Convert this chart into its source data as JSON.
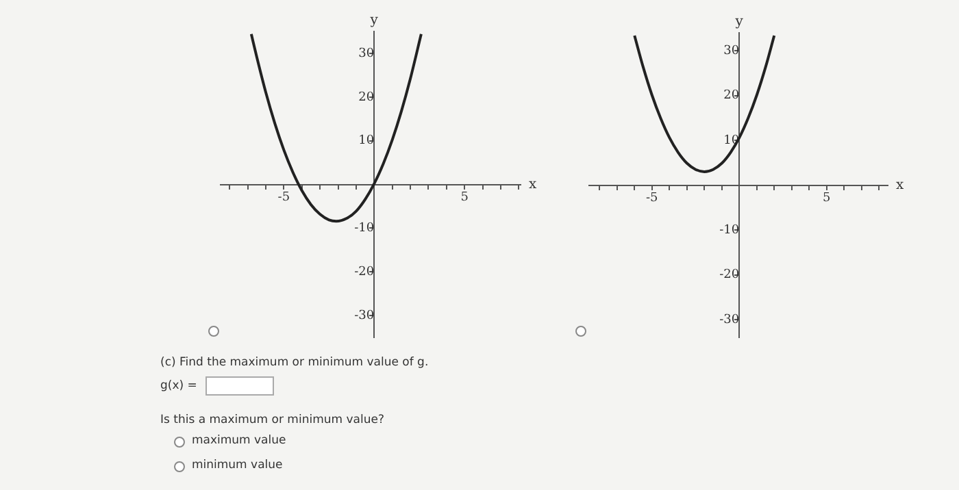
{
  "chart_data": [
    {
      "type": "line",
      "xlabel": "x",
      "ylabel": "y",
      "marker": "none",
      "line_style": "solid",
      "grid": false,
      "legend": false,
      "xlim": [
        -8.5,
        8.1
      ],
      "ylim": [
        -35,
        35
      ],
      "xticks": [
        {
          "value": -8,
          "label": null
        },
        {
          "value": -7,
          "label": null
        },
        {
          "value": -6,
          "label": null
        },
        {
          "value": -5,
          "label": "-5"
        },
        {
          "value": -4,
          "label": null
        },
        {
          "value": -3,
          "label": null
        },
        {
          "value": -2,
          "label": null
        },
        {
          "value": -1,
          "label": null
        },
        {
          "value": 1,
          "label": null
        },
        {
          "value": 2,
          "label": null
        },
        {
          "value": 3,
          "label": null
        },
        {
          "value": 4,
          "label": null
        },
        {
          "value": 5,
          "label": "5"
        },
        {
          "value": 6,
          "label": null
        },
        {
          "value": 7,
          "label": null
        },
        {
          "value": 8,
          "label": null
        }
      ],
      "yticks": [
        -30,
        -20,
        -10,
        10,
        20,
        30
      ],
      "series": [
        {
          "color": "#222222",
          "x": [
            -6.8,
            -6.5,
            -6,
            -5.5,
            -5,
            -4.5,
            -4,
            -3.5,
            -3,
            -2.5,
            -2.1,
            -1.5,
            -1,
            -0.5,
            0,
            0.5,
            1,
            1.5,
            2,
            2.6
          ],
          "values": [
            34.4,
            29.2,
            21.1,
            14.0,
            7.9,
            2.8,
            -1.4,
            -4.6,
            -6.8,
            -8.1,
            -8.4,
            -7.7,
            -6.1,
            -3.4,
            0.2,
            4.7,
            10.2,
            16.7,
            24.2,
            34.4
          ]
        }
      ]
    },
    {
      "type": "line",
      "xlabel": "x",
      "ylabel": "y",
      "marker": "none",
      "line_style": "solid",
      "grid": false,
      "legend": false,
      "xlim": [
        -8.6,
        8.5
      ],
      "ylim": [
        -34,
        34
      ],
      "xticks": [
        {
          "value": -8,
          "label": null
        },
        {
          "value": -7,
          "label": null
        },
        {
          "value": -6,
          "label": null
        },
        {
          "value": -5,
          "label": "-5"
        },
        {
          "value": -4,
          "label": null
        },
        {
          "value": -3,
          "label": null
        },
        {
          "value": -2,
          "label": null
        },
        {
          "value": -1,
          "label": null
        },
        {
          "value": 1,
          "label": null
        },
        {
          "value": 2,
          "label": null
        },
        {
          "value": 3,
          "label": null
        },
        {
          "value": 4,
          "label": null
        },
        {
          "value": 5,
          "label": "5"
        },
        {
          "value": 6,
          "label": null
        },
        {
          "value": 7,
          "label": null
        },
        {
          "value": 8,
          "label": null
        }
      ],
      "yticks": [
        -30,
        -20,
        -10,
        10,
        20,
        30
      ],
      "series": [
        {
          "color": "#222222",
          "x": [
            -6,
            -5.5,
            -5,
            -4.5,
            -4,
            -3.5,
            -3,
            -2.5,
            -2,
            -1.5,
            -1,
            -0.5,
            0,
            0.5,
            1,
            1.5,
            2
          ],
          "values": [
            33.4,
            26.3,
            20.1,
            14.9,
            10.6,
            7.3,
            4.9,
            3.5,
            3.0,
            3.5,
            4.9,
            7.3,
            10.6,
            14.9,
            20.1,
            26.3,
            33.4
          ]
        }
      ]
    },
    {
      "type": "other",
      "annotations": [
        "(c) Find the maximum or minimum value of g.",
        "g(x) =",
        "Is this a maximum or minimum value?",
        "maximum value",
        "minimum value"
      ]
    }
  ]
}
